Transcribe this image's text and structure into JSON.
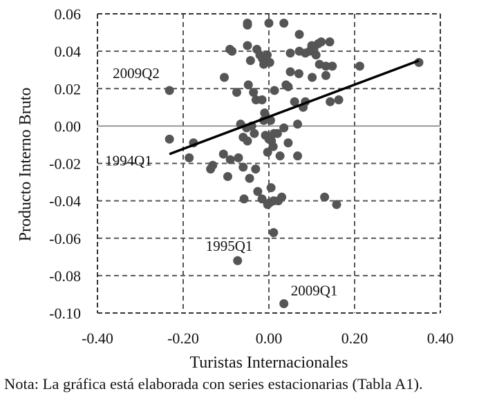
{
  "chart_data": {
    "type": "scatter",
    "title": "",
    "xlabel": "Turistas Internacionales",
    "ylabel": "Producto Interno Bruto",
    "xlim": [
      -0.4,
      0.4
    ],
    "ylim": [
      -0.1,
      0.06
    ],
    "x_ticks": [
      "-0.40",
      "-0.20",
      "0.00",
      "0.20",
      "0.40"
    ],
    "y_ticks": [
      "0.06",
      "0.04",
      "0.02",
      "0.00",
      "-0.02",
      "-0.04",
      "-0.06",
      "-0.08",
      "-0.10"
    ],
    "grid": "dashed",
    "legend": null,
    "trendline": {
      "x": [
        -0.232,
        0.35
      ],
      "y": [
        -0.015,
        0.035
      ]
    },
    "annotations": [
      {
        "text": "2009Q2",
        "x": -0.232,
        "y": 0.019
      },
      {
        "text": "1994Q1",
        "x": -0.232,
        "y": -0.007
      },
      {
        "text": "1995Q1",
        "x": -0.073,
        "y": -0.072
      },
      {
        "text": "2009Q1",
        "x": 0.035,
        "y": -0.095
      }
    ],
    "points": [
      [
        -0.232,
        0.019
      ],
      [
        -0.232,
        -0.007
      ],
      [
        -0.176,
        -0.009
      ],
      [
        -0.186,
        -0.017
      ],
      [
        -0.136,
        -0.023
      ],
      [
        -0.131,
        -0.021
      ],
      [
        -0.106,
        -0.015
      ],
      [
        -0.09,
        -0.018
      ],
      [
        -0.096,
        -0.027
      ],
      [
        -0.071,
        -0.017
      ],
      [
        -0.06,
        -0.022
      ],
      [
        -0.045,
        -0.028
      ],
      [
        -0.031,
        -0.023
      ],
      [
        -0.026,
        -0.035
      ],
      [
        -0.058,
        -0.039
      ],
      [
        -0.016,
        -0.039
      ],
      [
        -0.003,
        -0.042
      ],
      [
        0.002,
        -0.041
      ],
      [
        0.005,
        -0.033
      ],
      [
        0.011,
        -0.04
      ],
      [
        0.022,
        -0.04
      ],
      [
        0.03,
        -0.038
      ],
      [
        0.011,
        -0.057
      ],
      [
        -0.073,
        -0.072
      ],
      [
        0.035,
        -0.095
      ],
      [
        0.13,
        -0.038
      ],
      [
        0.158,
        -0.042
      ],
      [
        -0.104,
        0.026
      ],
      [
        -0.091,
        0.041
      ],
      [
        -0.086,
        0.04
      ],
      [
        -0.05,
        0.055
      ],
      [
        -0.05,
        0.054
      ],
      [
        -0.05,
        0.043
      ],
      [
        -0.043,
        0.035
      ],
      [
        -0.028,
        0.041
      ],
      [
        -0.021,
        0.038
      ],
      [
        -0.015,
        0.036
      ],
      [
        -0.012,
        0.033
      ],
      [
        -0.004,
        0.038
      ],
      [
        0.0,
        0.055
      ],
      [
        0.035,
        0.055
      ],
      [
        0.002,
        0.034
      ],
      [
        -0.048,
        0.022
      ],
      [
        -0.075,
        0.018
      ],
      [
        -0.036,
        0.018
      ],
      [
        -0.03,
        0.014
      ],
      [
        -0.016,
        0.014
      ],
      [
        -0.01,
        0.007
      ],
      [
        -0.012,
        0.003
      ],
      [
        0.004,
        0.003
      ],
      [
        0.013,
        0.019
      ],
      [
        -0.066,
        0.001
      ],
      [
        -0.052,
        -0.001
      ],
      [
        -0.04,
        0.0
      ],
      [
        -0.06,
        -0.006
      ],
      [
        -0.05,
        -0.008
      ],
      [
        -0.034,
        -0.004
      ],
      [
        -0.008,
        -0.005
      ],
      [
        0.0,
        -0.007
      ],
      [
        0.006,
        -0.008
      ],
      [
        0.012,
        -0.004
      ],
      [
        0.02,
        -0.004
      ],
      [
        -0.003,
        -0.014
      ],
      [
        0.01,
        -0.011
      ],
      [
        0.026,
        -0.016
      ],
      [
        0.045,
        -0.009
      ],
      [
        0.067,
        -0.016
      ],
      [
        0.035,
        -0.001
      ],
      [
        0.067,
        0.001
      ],
      [
        0.045,
        0.021
      ],
      [
        0.04,
        0.022
      ],
      [
        0.05,
        0.029
      ],
      [
        0.07,
        0.028
      ],
      [
        0.071,
        0.04
      ],
      [
        0.071,
        0.049
      ],
      [
        0.05,
        0.039
      ],
      [
        0.085,
        0.039
      ],
      [
        0.1,
        0.043
      ],
      [
        0.095,
        0.04
      ],
      [
        0.105,
        0.041
      ],
      [
        0.115,
        0.044
      ],
      [
        0.122,
        0.045
      ],
      [
        0.142,
        0.045
      ],
      [
        0.11,
        0.038
      ],
      [
        0.133,
        0.032
      ],
      [
        0.118,
        0.033
      ],
      [
        0.148,
        0.032
      ],
      [
        0.06,
        0.013
      ],
      [
        0.085,
        0.013
      ],
      [
        0.08,
        0.01
      ],
      [
        0.101,
        0.026
      ],
      [
        0.133,
        0.027
      ],
      [
        0.143,
        0.013
      ],
      [
        0.163,
        0.014
      ],
      [
        0.212,
        0.032
      ],
      [
        0.35,
        0.034
      ]
    ]
  },
  "axes": {
    "x_title": "Turistas Internacionales",
    "y_title": "Producto Interno Bruto"
  },
  "note": "Nota: La gráfica está elaborada con series estacionarias (Tabla A1).",
  "colors": {
    "marker": "#555555",
    "trendline": "#000000",
    "grid": "#555555",
    "zero_line": "#777777"
  }
}
